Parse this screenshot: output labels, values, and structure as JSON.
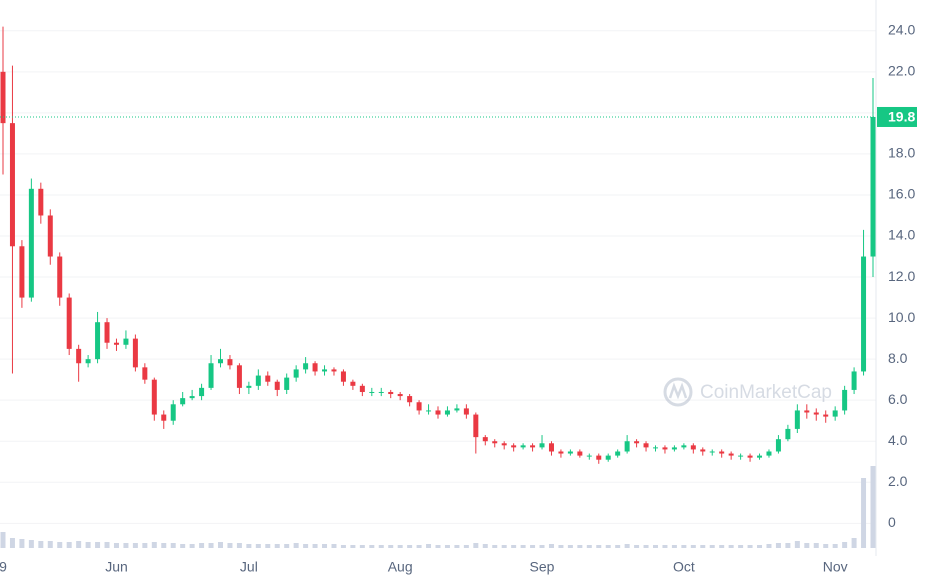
{
  "chart_data": {
    "type": "candlestick",
    "watermark": "CoinMarketCap",
    "categories": [
      "9",
      null,
      null,
      null,
      null,
      null,
      null,
      null,
      null,
      null,
      null,
      null,
      "Jun",
      null,
      null,
      null,
      null,
      null,
      null,
      null,
      null,
      null,
      null,
      null,
      null,
      null,
      "Jul",
      null,
      null,
      null,
      null,
      null,
      null,
      null,
      null,
      null,
      null,
      null,
      null,
      null,
      null,
      null,
      "Aug",
      null,
      null,
      null,
      null,
      null,
      null,
      null,
      null,
      null,
      null,
      null,
      null,
      null,
      null,
      "Sep",
      null,
      null,
      null,
      null,
      null,
      null,
      null,
      null,
      null,
      null,
      null,
      null,
      null,
      null,
      "Oct",
      null,
      null,
      null,
      null,
      null,
      null,
      null,
      null,
      null,
      null,
      null,
      null,
      null,
      null,
      null,
      "Nov",
      null,
      null,
      null,
      null
    ],
    "open": [
      22.0,
      19.5,
      13.5,
      11.0,
      16.3,
      15.0,
      13.0,
      11.0,
      8.5,
      7.8,
      8.0,
      9.8,
      8.8,
      8.7,
      9.0,
      7.6,
      7.0,
      5.3,
      5.0,
      5.8,
      6.1,
      6.2,
      6.6,
      7.8,
      8.0,
      7.7,
      6.6,
      6.7,
      7.2,
      6.9,
      6.5,
      7.1,
      7.5,
      7.8,
      7.4,
      7.5,
      7.4,
      6.9,
      6.7,
      6.4,
      6.4,
      6.4,
      6.3,
      6.2,
      5.9,
      5.5,
      5.5,
      5.3,
      5.5,
      5.6,
      5.3,
      4.2,
      4.0,
      3.9,
      3.8,
      3.7,
      3.8,
      3.7,
      3.9,
      3.5,
      3.4,
      3.5,
      3.3,
      3.3,
      3.1,
      3.3,
      3.5,
      4.0,
      3.9,
      3.7,
      3.7,
      3.6,
      3.7,
      3.8,
      3.6,
      3.5,
      3.5,
      3.4,
      3.3,
      3.3,
      3.2,
      3.3,
      3.5,
      4.1,
      4.6,
      5.5,
      5.4,
      5.3,
      5.2,
      5.5,
      6.5,
      7.4,
      13.0
    ],
    "high": [
      24.2,
      22.3,
      13.8,
      16.8,
      16.6,
      15.3,
      13.2,
      11.2,
      8.7,
      8.2,
      10.3,
      10.0,
      9.0,
      9.4,
      9.2,
      7.8,
      7.1,
      5.5,
      6.0,
      6.4,
      6.5,
      6.8,
      8.2,
      8.5,
      8.2,
      7.8,
      6.9,
      7.5,
      7.4,
      7.0,
      7.3,
      7.7,
      8.1,
      7.9,
      7.7,
      7.6,
      7.5,
      7.0,
      6.8,
      6.6,
      6.6,
      6.5,
      6.4,
      6.3,
      6.0,
      5.8,
      5.7,
      5.7,
      5.8,
      5.8,
      5.4,
      4.3,
      4.1,
      4.0,
      3.9,
      3.9,
      3.9,
      4.3,
      4.0,
      3.6,
      3.6,
      3.6,
      3.4,
      3.4,
      3.4,
      3.6,
      4.3,
      4.1,
      4.0,
      3.8,
      3.8,
      3.8,
      3.9,
      3.9,
      3.7,
      3.6,
      3.6,
      3.5,
      3.4,
      3.4,
      3.4,
      3.6,
      4.3,
      4.8,
      5.8,
      5.8,
      5.6,
      5.5,
      5.7,
      6.7,
      7.6,
      14.3,
      21.7
    ],
    "low": [
      17.0,
      7.3,
      10.5,
      10.8,
      14.6,
      12.6,
      10.6,
      8.2,
      6.9,
      7.6,
      7.8,
      8.5,
      8.4,
      8.5,
      7.4,
      6.8,
      5.0,
      4.6,
      4.8,
      5.7,
      6.0,
      6.0,
      6.5,
      7.6,
      7.5,
      6.3,
      6.3,
      6.5,
      6.7,
      6.2,
      6.3,
      6.9,
      7.3,
      7.2,
      7.2,
      7.2,
      6.7,
      6.5,
      6.2,
      6.2,
      6.2,
      6.1,
      6.0,
      5.7,
      5.3,
      5.3,
      5.1,
      5.2,
      5.4,
      5.1,
      3.4,
      3.8,
      3.7,
      3.6,
      3.5,
      3.6,
      3.5,
      3.6,
      3.3,
      3.2,
      3.3,
      3.2,
      3.1,
      2.9,
      3.0,
      3.2,
      3.4,
      3.7,
      3.5,
      3.5,
      3.4,
      3.5,
      3.6,
      3.4,
      3.3,
      3.3,
      3.2,
      3.1,
      3.1,
      3.0,
      3.1,
      3.2,
      3.4,
      4.0,
      4.4,
      5.1,
      5.0,
      4.9,
      5.0,
      5.3,
      6.3,
      7.2,
      12.0
    ],
    "close": [
      19.5,
      13.5,
      11.0,
      16.3,
      15.0,
      13.0,
      11.0,
      8.5,
      7.8,
      8.0,
      9.8,
      8.8,
      8.7,
      9.0,
      7.6,
      7.0,
      5.3,
      5.0,
      5.8,
      6.1,
      6.2,
      6.6,
      7.8,
      8.0,
      7.7,
      6.6,
      6.7,
      7.2,
      6.9,
      6.5,
      7.1,
      7.5,
      7.8,
      7.4,
      7.5,
      7.4,
      6.9,
      6.7,
      6.4,
      6.4,
      6.4,
      6.3,
      6.2,
      5.9,
      5.5,
      5.5,
      5.3,
      5.5,
      5.6,
      5.3,
      4.2,
      4.0,
      3.9,
      3.8,
      3.7,
      3.8,
      3.7,
      3.9,
      3.5,
      3.4,
      3.5,
      3.3,
      3.3,
      3.1,
      3.3,
      3.5,
      4.0,
      3.9,
      3.7,
      3.7,
      3.6,
      3.7,
      3.8,
      3.6,
      3.5,
      3.5,
      3.4,
      3.3,
      3.3,
      3.2,
      3.3,
      3.5,
      4.1,
      4.6,
      5.5,
      5.4,
      5.3,
      5.2,
      5.5,
      6.5,
      7.4,
      13.0,
      19.8
    ],
    "volume": [
      16,
      10,
      9,
      8,
      7,
      7,
      6,
      6,
      7,
      6,
      6,
      6,
      5,
      5,
      5,
      5,
      6,
      5,
      5,
      4,
      4,
      5,
      5,
      6,
      5,
      5,
      4,
      4,
      4,
      4,
      4,
      5,
      4,
      4,
      4,
      4,
      3,
      3,
      3,
      3,
      3,
      3,
      3,
      3,
      3,
      4,
      3,
      3,
      3,
      3,
      5,
      4,
      3,
      3,
      3,
      3,
      3,
      3,
      4,
      3,
      3,
      3,
      3,
      3,
      3,
      3,
      4,
      3,
      3,
      3,
      3,
      3,
      3,
      3,
      3,
      3,
      3,
      3,
      3,
      3,
      3,
      4,
      5,
      5,
      7,
      5,
      5,
      4,
      4,
      6,
      10,
      70,
      82
    ],
    "up_color": "#16c784",
    "down_color": "#ea3943",
    "volume_color": "#cfd6e4",
    "ylim": [
      -1.3,
      25.5
    ],
    "y2lim": [
      0,
      100
    ],
    "yticks": [
      0,
      {
        "value": 2,
        "label": "2.0"
      },
      {
        "value": 4,
        "label": "4.0"
      },
      {
        "value": 6,
        "label": "6.0"
      },
      {
        "value": 8,
        "label": "8.0"
      },
      {
        "value": 10,
        "label": "10.0"
      },
      {
        "value": 12,
        "label": "12.0"
      },
      {
        "value": 14,
        "label": "14.0"
      },
      {
        "value": 16,
        "label": "16.0"
      },
      {
        "value": 18,
        "label": "18.0"
      },
      {
        "value": 20,
        "label": "20.0"
      },
      {
        "value": 22,
        "label": "22.0"
      },
      {
        "value": 24,
        "label": "24.0"
      }
    ],
    "grid": true
  }
}
